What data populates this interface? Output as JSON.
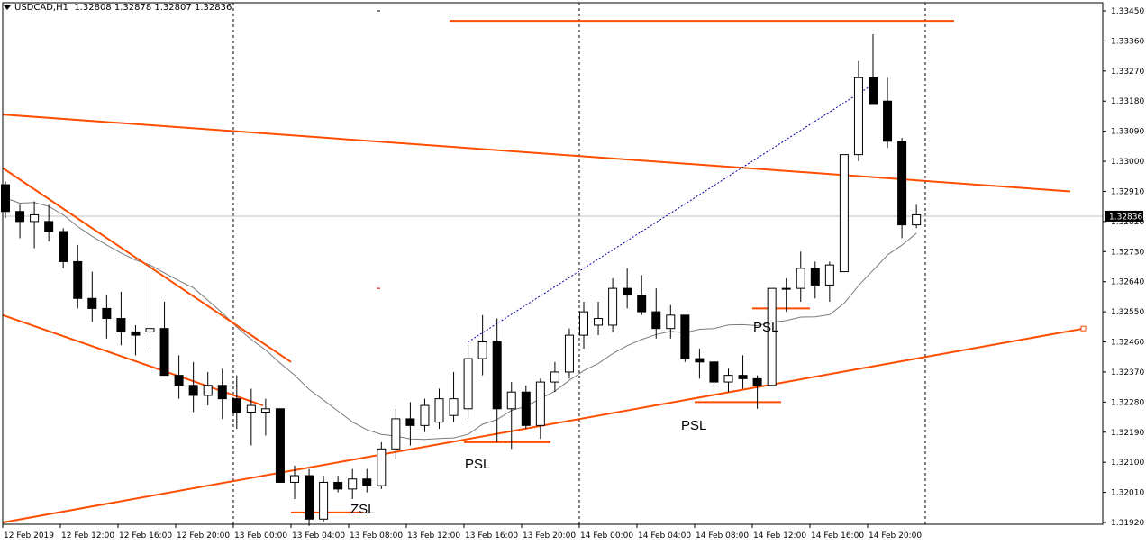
{
  "header": {
    "symbol": "USDCAD,H1",
    "open": "1.32808",
    "high": "1.32878",
    "low": "1.32807",
    "close": "1.32836"
  },
  "chart_data": {
    "type": "candlestick",
    "ylim": [
      1.3188,
      1.3348
    ],
    "y_ticks": [
      "1.33450",
      "1.33360",
      "1.33270",
      "1.33180",
      "1.33090",
      "1.33000",
      "1.32910",
      "1.32820",
      "1.32730",
      "1.32640",
      "1.32550",
      "1.32460",
      "1.32370",
      "1.32280",
      "1.32190",
      "1.32100",
      "1.32010",
      "1.31920"
    ],
    "x_ticks": [
      "12 Feb 2019",
      "12 Feb 12:00",
      "12 Feb 16:00",
      "12 Feb 20:00",
      "13 Feb 00:00",
      "13 Feb 04:00",
      "13 Feb 08:00",
      "13 Feb 12:00",
      "13 Feb 16:00",
      "13 Feb 20:00",
      "14 Feb 00:00",
      "14 Feb 04:00",
      "14 Feb 08:00",
      "14 Feb 12:00",
      "14 Feb 16:00",
      "14 Feb 20:00"
    ],
    "current_price": "1.32836",
    "candles": [
      [
        1.3293,
        1.3294,
        1.3283,
        1.3285
      ],
      [
        1.3285,
        1.3287,
        1.3277,
        1.3282
      ],
      [
        1.3282,
        1.3288,
        1.3274,
        1.3284
      ],
      [
        1.3282,
        1.3287,
        1.3276,
        1.3279
      ],
      [
        1.3279,
        1.328,
        1.3268,
        1.327
      ],
      [
        1.327,
        1.3275,
        1.3256,
        1.3259
      ],
      [
        1.3259,
        1.3267,
        1.3252,
        1.3256
      ],
      [
        1.3256,
        1.326,
        1.3247,
        1.3253
      ],
      [
        1.3253,
        1.3261,
        1.3245,
        1.3249
      ],
      [
        1.3249,
        1.3251,
        1.3242,
        1.3248
      ],
      [
        1.3249,
        1.327,
        1.3243,
        1.325
      ],
      [
        1.325,
        1.3258,
        1.3236,
        1.3236
      ],
      [
        1.3236,
        1.3242,
        1.3229,
        1.3233
      ],
      [
        1.3233,
        1.324,
        1.3225,
        1.323
      ],
      [
        1.323,
        1.3237,
        1.3227,
        1.3233
      ],
      [
        1.3233,
        1.3238,
        1.3223,
        1.3229
      ],
      [
        1.3229,
        1.3236,
        1.322,
        1.3225
      ],
      [
        1.3225,
        1.3232,
        1.3215,
        1.3227
      ],
      [
        1.3225,
        1.3229,
        1.3218,
        1.3226
      ],
      [
        1.3226,
        1.3226,
        1.3204,
        1.3204
      ],
      [
        1.3204,
        1.3209,
        1.3199,
        1.3206
      ],
      [
        1.3206,
        1.3208,
        1.3191,
        1.3193
      ],
      [
        1.3193,
        1.3206,
        1.3192,
        1.3204
      ],
      [
        1.3204,
        1.3206,
        1.3201,
        1.3202
      ],
      [
        1.3202,
        1.3208,
        1.3199,
        1.3205
      ],
      [
        1.3205,
        1.3208,
        1.3201,
        1.3203
      ],
      [
        1.3203,
        1.3216,
        1.3202,
        1.3214
      ],
      [
        1.3214,
        1.3226,
        1.3211,
        1.3223
      ],
      [
        1.3223,
        1.3228,
        1.3215,
        1.3221
      ],
      [
        1.3221,
        1.3229,
        1.3219,
        1.3227
      ],
      [
        1.3222,
        1.3232,
        1.322,
        1.3229
      ],
      [
        1.3224,
        1.3237,
        1.3222,
        1.3229
      ],
      [
        1.3226,
        1.3245,
        1.3223,
        1.3241
      ],
      [
        1.3241,
        1.3254,
        1.3236,
        1.3246
      ],
      [
        1.3246,
        1.3253,
        1.3216,
        1.3226
      ],
      [
        1.3226,
        1.3234,
        1.3214,
        1.3231
      ],
      [
        1.3231,
        1.3233,
        1.322,
        1.3221
      ],
      [
        1.3221,
        1.3235,
        1.3217,
        1.3234
      ],
      [
        1.3234,
        1.324,
        1.3231,
        1.3237
      ],
      [
        1.3237,
        1.325,
        1.3235,
        1.3248
      ],
      [
        1.3248,
        1.3258,
        1.3244,
        1.3255
      ],
      [
        1.3251,
        1.3258,
        1.3248,
        1.3253
      ],
      [
        1.3251,
        1.3265,
        1.3249,
        1.3262
      ],
      [
        1.3262,
        1.3268,
        1.3256,
        1.326
      ],
      [
        1.326,
        1.3266,
        1.3254,
        1.3255
      ],
      [
        1.3255,
        1.3262,
        1.3247,
        1.325
      ],
      [
        1.325,
        1.3257,
        1.3247,
        1.3254
      ],
      [
        1.3254,
        1.3254,
        1.324,
        1.3241
      ],
      [
        1.3241,
        1.3244,
        1.3235,
        1.324
      ],
      [
        1.324,
        1.324,
        1.3232,
        1.3234
      ],
      [
        1.3234,
        1.3238,
        1.3231,
        1.3236
      ],
      [
        1.3236,
        1.3242,
        1.3232,
        1.3235
      ],
      [
        1.3235,
        1.3236,
        1.3226,
        1.3233
      ],
      [
        1.3233,
        1.3262,
        1.3233,
        1.3262
      ],
      [
        1.3262,
        1.3265,
        1.3255,
        1.3262
      ],
      [
        1.3262,
        1.3273,
        1.3258,
        1.3268
      ],
      [
        1.3268,
        1.327,
        1.3259,
        1.3263
      ],
      [
        1.3263,
        1.327,
        1.3258,
        1.3269
      ],
      [
        1.3267,
        1.3302,
        1.3267,
        1.3302
      ],
      [
        1.3302,
        1.333,
        1.33,
        1.3325
      ],
      [
        1.3325,
        1.3338,
        1.3317,
        1.3317
      ],
      [
        1.3318,
        1.3325,
        1.3304,
        1.3306
      ],
      [
        1.3306,
        1.3307,
        1.3277,
        1.3281
      ],
      [
        1.3281,
        1.3287,
        1.328,
        1.3284
      ]
    ],
    "annotations": [
      "ZSL",
      "PSL",
      "PSL",
      "PSL"
    ]
  }
}
